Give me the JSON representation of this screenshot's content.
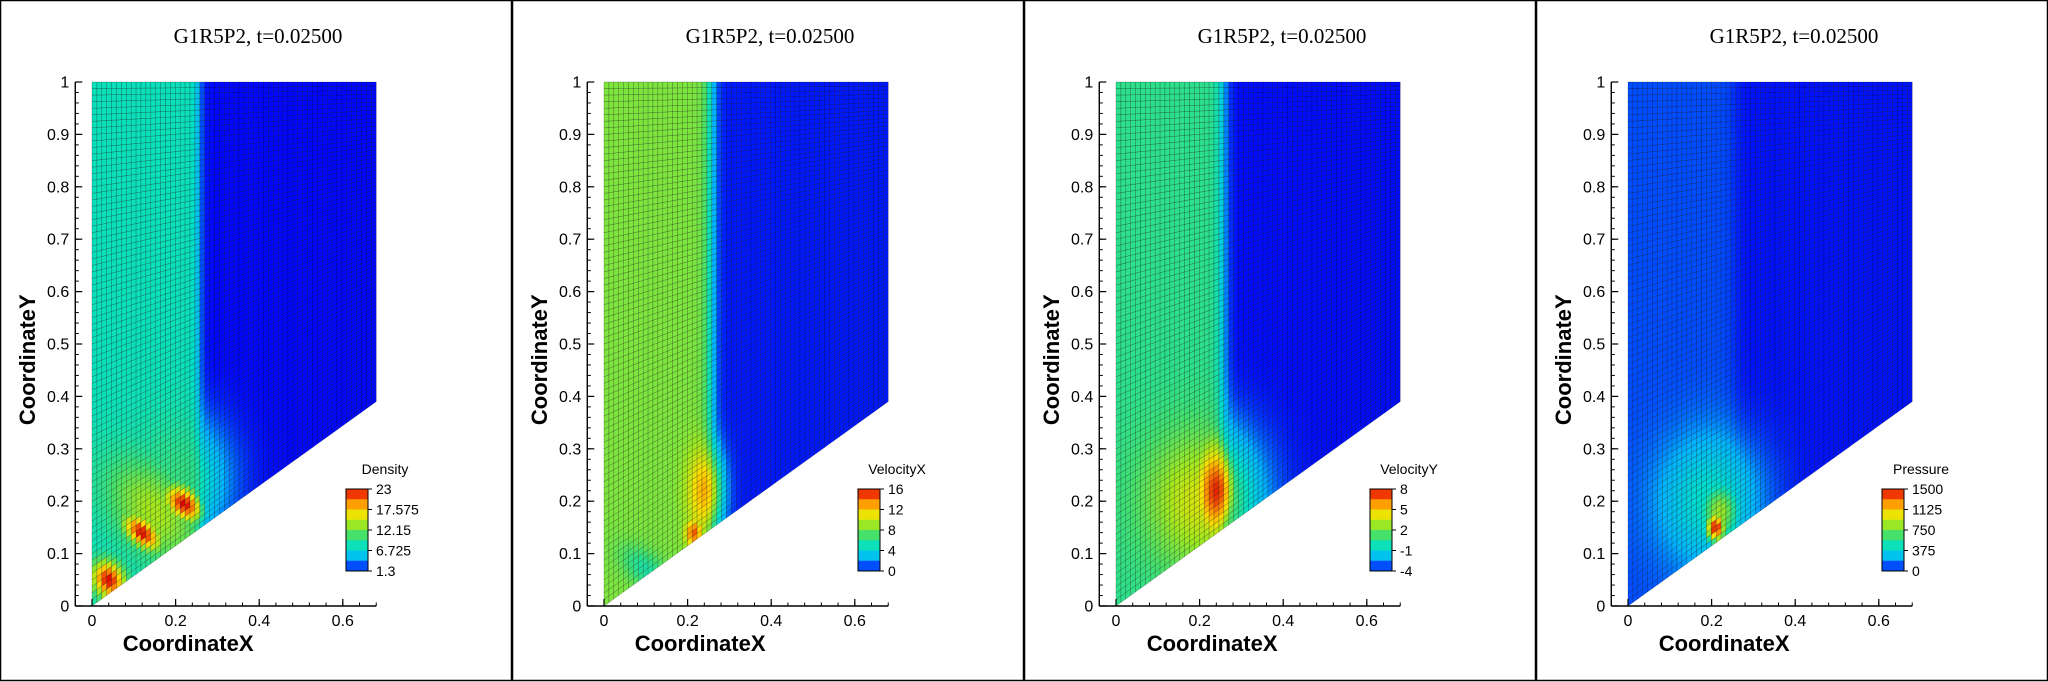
{
  "colors": {
    "scale": [
      "#0000ff",
      "#00b4ff",
      "#00e0c8",
      "#40e070",
      "#a0e820",
      "#ffe000",
      "#ff8000",
      "#e00000"
    ],
    "background": "#ffffff",
    "mesh_line": "#000000"
  },
  "chart_data": [
    {
      "type": "heatmap",
      "title": "G1R5P2, t=0.02500",
      "xlabel": "CoordinateX",
      "ylabel": "CoordinateY",
      "xlim": [
        -0.04,
        0.68
      ],
      "ylim": [
        0,
        1
      ],
      "x_ticks": [
        "0",
        "0.2",
        "0.4",
        "0.6"
      ],
      "x_tick_values": [
        0,
        0.2,
        0.4,
        0.6
      ],
      "y_ticks": [
        "0",
        "0.1",
        "0.2",
        "0.3",
        "0.4",
        "0.5",
        "0.6",
        "0.7",
        "0.8",
        "0.9",
        "1"
      ],
      "y_tick_values": [
        0,
        0.1,
        0.2,
        0.3,
        0.4,
        0.5,
        0.6,
        0.7,
        0.8,
        0.9,
        1
      ],
      "domain": {
        "x_min": 0,
        "x_max": 0.68,
        "wedge_y_at_x_max": 0.39
      },
      "legend": {
        "title": "Density",
        "levels": [
          "23",
          "17.575",
          "12.15",
          "6.725",
          "1.3"
        ],
        "min": 1.3,
        "max": 23,
        "position": "lower-right"
      },
      "field": {
        "left_value": 8.0,
        "right_value": 1.4,
        "front_x": 0.255,
        "front_width": 0.006,
        "blobs": [
          {
            "cx": 0.22,
            "cy": 0.195,
            "rx": 0.06,
            "ry": 0.035,
            "value": 23,
            "rot": -25
          },
          {
            "cx": 0.12,
            "cy": 0.14,
            "rx": 0.06,
            "ry": 0.03,
            "value": 23,
            "rot": -30
          },
          {
            "cx": 0.04,
            "cy": 0.05,
            "rx": 0.05,
            "ry": 0.04,
            "value": 23,
            "rot": -30
          },
          {
            "cx": 0.15,
            "cy": 0.18,
            "rx": 0.16,
            "ry": 0.1,
            "value": 14,
            "rot": -35
          },
          {
            "cx": 0.2,
            "cy": 0.24,
            "rx": 0.14,
            "ry": 0.14,
            "value": 10,
            "rot": 0
          }
        ]
      }
    },
    {
      "type": "heatmap",
      "title": "G1R5P2, t=0.02500",
      "xlabel": "CoordinateX",
      "ylabel": "CoordinateY",
      "xlim": [
        -0.04,
        0.68
      ],
      "ylim": [
        0,
        1
      ],
      "x_ticks": [
        "0",
        "0.2",
        "0.4",
        "0.6"
      ],
      "x_tick_values": [
        0,
        0.2,
        0.4,
        0.6
      ],
      "y_ticks": [
        "0",
        "0.1",
        "0.2",
        "0.3",
        "0.4",
        "0.5",
        "0.6",
        "0.7",
        "0.8",
        "0.9",
        "1"
      ],
      "y_tick_values": [
        0,
        0.1,
        0.2,
        0.3,
        0.4,
        0.5,
        0.6,
        0.7,
        0.8,
        0.9,
        1
      ],
      "domain": {
        "x_min": 0,
        "x_max": 0.68,
        "wedge_y_at_x_max": 0.39
      },
      "legend": {
        "title": "VelocityX",
        "levels": [
          "16",
          "12",
          "8",
          "4",
          "0"
        ],
        "min": 0,
        "max": 16,
        "position": "lower-right"
      },
      "field": {
        "left_value": 8.3,
        "right_value": 0.3,
        "front_x": 0.255,
        "front_width": 0.008,
        "blobs": [
          {
            "cx": 0.24,
            "cy": 0.22,
            "rx": 0.05,
            "ry": 0.1,
            "value": 12.5,
            "rot": 0
          },
          {
            "cx": 0.215,
            "cy": 0.14,
            "rx": 0.025,
            "ry": 0.03,
            "value": 14.5,
            "rot": 0
          },
          {
            "cx": 0.1,
            "cy": 0.07,
            "rx": 0.08,
            "ry": 0.04,
            "value": 5.5,
            "rot": -30
          }
        ]
      }
    },
    {
      "type": "heatmap",
      "title": "G1R5P2, t=0.02500",
      "xlabel": "CoordinateX",
      "ylabel": "CoordinateY",
      "xlim": [
        -0.04,
        0.68
      ],
      "ylim": [
        0,
        1
      ],
      "x_ticks": [
        "0",
        "0.2",
        "0.4",
        "0.6"
      ],
      "x_tick_values": [
        0,
        0.2,
        0.4,
        0.6
      ],
      "y_ticks": [
        "0",
        "0.1",
        "0.2",
        "0.3",
        "0.4",
        "0.5",
        "0.6",
        "0.7",
        "0.8",
        "0.9",
        "1"
      ],
      "y_tick_values": [
        0,
        0.1,
        0.2,
        0.3,
        0.4,
        0.5,
        0.6,
        0.7,
        0.8,
        0.9,
        1
      ],
      "domain": {
        "x_min": 0,
        "x_max": 0.68,
        "wedge_y_at_x_max": 0.39
      },
      "legend": {
        "title": "VelocityY",
        "levels": [
          "8",
          "5",
          "2",
          "-1",
          "-4"
        ],
        "min": -4,
        "max": 8,
        "position": "lower-right"
      },
      "field": {
        "left_value": 0.6,
        "right_value": -3.9,
        "front_x": 0.255,
        "front_width": 0.008,
        "blobs": [
          {
            "cx": 0.24,
            "cy": 0.22,
            "rx": 0.06,
            "ry": 0.11,
            "value": 7.5,
            "rot": 0
          },
          {
            "cx": 0.2,
            "cy": 0.2,
            "rx": 0.16,
            "ry": 0.16,
            "value": 3.8,
            "rot": 0
          }
        ]
      }
    },
    {
      "type": "heatmap",
      "title": "G1R5P2, t=0.02500",
      "xlabel": "CoordinateX",
      "ylabel": "CoordinateY",
      "xlim": [
        -0.04,
        0.68
      ],
      "ylim": [
        0,
        1
      ],
      "x_ticks": [
        "0",
        "0.2",
        "0.4",
        "0.6"
      ],
      "x_tick_values": [
        0,
        0.2,
        0.4,
        0.6
      ],
      "y_ticks": [
        "0",
        "0.1",
        "0.2",
        "0.3",
        "0.4",
        "0.5",
        "0.6",
        "0.7",
        "0.8",
        "0.9",
        "1"
      ],
      "y_tick_values": [
        0,
        0.1,
        0.2,
        0.3,
        0.4,
        0.5,
        0.6,
        0.7,
        0.8,
        0.9,
        1
      ],
      "domain": {
        "x_min": 0,
        "x_max": 0.68,
        "wedge_y_at_x_max": 0.39
      },
      "legend": {
        "title": "Pressure",
        "levels": [
          "1500",
          "1125",
          "750",
          "375",
          "0"
        ],
        "min": 0,
        "max": 1500,
        "position": "lower-right"
      },
      "field": {
        "left_value": 90,
        "right_value": 20,
        "front_x": 0.255,
        "front_width": 0.01,
        "blobs": [
          {
            "cx": 0.21,
            "cy": 0.15,
            "rx": 0.03,
            "ry": 0.035,
            "value": 1500,
            "rot": 0
          },
          {
            "cx": 0.22,
            "cy": 0.18,
            "rx": 0.06,
            "ry": 0.07,
            "value": 850,
            "rot": 0
          },
          {
            "cx": 0.2,
            "cy": 0.2,
            "rx": 0.15,
            "ry": 0.15,
            "value": 430,
            "rot": 0
          }
        ]
      }
    }
  ]
}
